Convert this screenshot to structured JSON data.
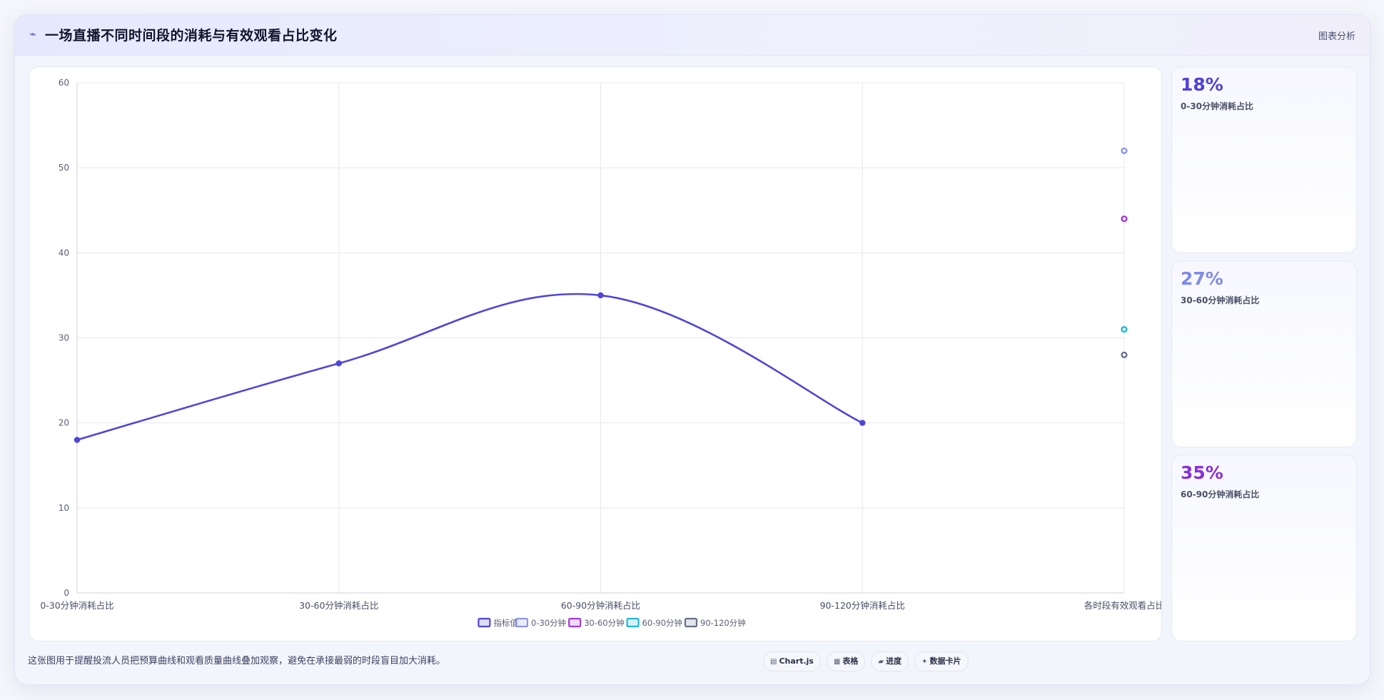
{
  "header": {
    "title": "一场直播不同时间段的消耗与有效观看占比变化",
    "tag": "图表分析"
  },
  "colors": {
    "main": "#4f46d8",
    "s030": "#8b93e8",
    "s3060": "#a43ad6",
    "s6090": "#1fb8d1",
    "s90120": "#65708a"
  },
  "chart_data": {
    "type": "line",
    "categories": [
      "0-30分钟消耗占比",
      "30-60分钟消耗占比",
      "60-90分钟消耗占比",
      "90-120分钟消耗占比",
      "各时段有效观看占比"
    ],
    "ylim": [
      0,
      60
    ],
    "yticks": [
      0,
      10,
      20,
      30,
      40,
      50,
      60
    ],
    "series": [
      {
        "name": "指标值",
        "color": "#4f46d8",
        "values": [
          18,
          27,
          35,
          20,
          null
        ]
      },
      {
        "name": "0-30分钟",
        "color": "#8b93e8",
        "values": [
          null,
          null,
          null,
          null,
          52
        ]
      },
      {
        "name": "30-60分钟",
        "color": "#a43ad6",
        "values": [
          null,
          null,
          null,
          null,
          44
        ]
      },
      {
        "name": "60-90分钟",
        "color": "#1fb8d1",
        "values": [
          null,
          null,
          null,
          null,
          31
        ]
      },
      {
        "name": "90-120分钟",
        "color": "#65708a",
        "values": [
          null,
          null,
          null,
          null,
          28
        ]
      }
    ],
    "legend_position": "bottom",
    "grid": true
  },
  "stats": [
    {
      "value": "18%",
      "label": "0-30分钟消耗占比",
      "color": "#5140d6"
    },
    {
      "value": "27%",
      "label": "30-60分钟消耗占比",
      "color": "#7f8ae6"
    },
    {
      "value": "35%",
      "label": "60-90分钟消耗占比",
      "color": "#8a2fd8"
    }
  ],
  "footer": {
    "note": "这张图用于提醒投流人员把预算曲线和观看质量曲线叠加观察，避免在承接最弱的时段盲目加大消耗。",
    "chips": [
      {
        "icon": "▤",
        "icon_name": "chart-icon",
        "label": "Chart.js"
      },
      {
        "icon": "▦",
        "icon_name": "table-icon",
        "label": "表格"
      },
      {
        "icon": "▰",
        "icon_name": "progress-icon",
        "label": "进度"
      },
      {
        "icon": "✦",
        "icon_name": "card-icon",
        "label": "数据卡片"
      }
    ]
  }
}
